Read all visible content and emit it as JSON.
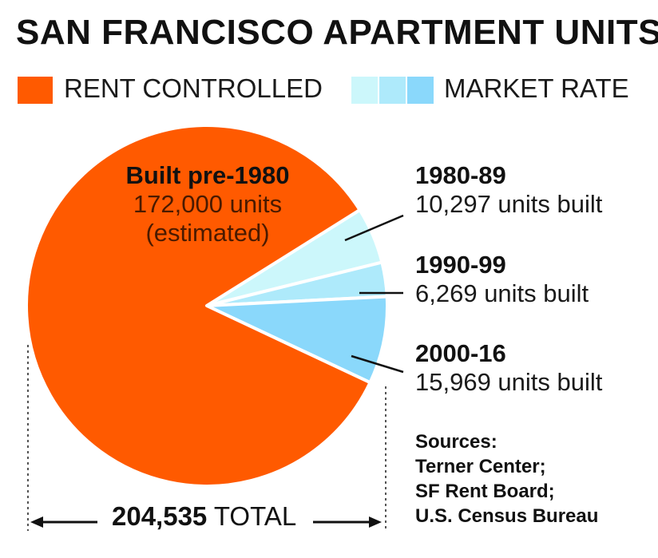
{
  "title": "SAN FRANCISCO APARTMENT UNITS",
  "legend": {
    "rent_controlled": {
      "label": "RENT CONTROLLED",
      "color": "#ff5a00"
    },
    "market_rate": {
      "label": "MARKET RATE",
      "colors": [
        "#ccf7fb",
        "#aeeafb",
        "#8ad8fb"
      ]
    }
  },
  "chart_data": {
    "type": "pie",
    "slices": [
      {
        "name": "Built pre-1980",
        "detail": [
          "172,000 units",
          "(estimated)"
        ],
        "value": 172000,
        "color": "#ff5a00",
        "category": "RENT CONTROLLED"
      },
      {
        "name": "1980-89",
        "detail": [
          "10,297 units built"
        ],
        "value": 10297,
        "color": "#ccf7fb",
        "category": "MARKET RATE"
      },
      {
        "name": "1990-99",
        "detail": [
          "6,269 units built"
        ],
        "value": 6269,
        "color": "#aeeafb",
        "category": "MARKET RATE"
      },
      {
        "name": "2000-16",
        "detail": [
          "15,969 units built"
        ],
        "value": 15969,
        "color": "#8ad8fb",
        "category": "MARKET RATE"
      }
    ],
    "total": {
      "value_text": "204,535",
      "label": "TOTAL"
    }
  },
  "sources": [
    "Sources:",
    "Terner Center;",
    "SF Rent Board;",
    "U.S. Census Bureau"
  ]
}
